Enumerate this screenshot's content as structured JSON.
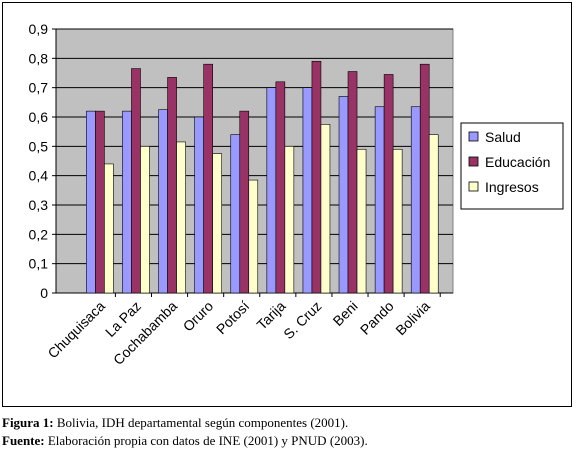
{
  "chart_data": {
    "type": "bar",
    "categories": [
      "Chuquisaca",
      "La Paz",
      "Cochabamba",
      "Oruro",
      "Potosí",
      "Tarija",
      "S. Cruz",
      "Beni",
      "Pando",
      "Bolivia"
    ],
    "series": [
      {
        "name": "Salud",
        "color": "#9999ff",
        "values": [
          0.62,
          0.62,
          0.625,
          0.6,
          0.54,
          0.7,
          0.7,
          0.67,
          0.635,
          0.635
        ]
      },
      {
        "name": "Educación",
        "color": "#993366",
        "values": [
          0.62,
          0.765,
          0.735,
          0.78,
          0.62,
          0.72,
          0.79,
          0.755,
          0.745,
          0.78
        ]
      },
      {
        "name": "Ingresos",
        "color": "#ffffcc",
        "values": [
          0.44,
          0.5,
          0.515,
          0.475,
          0.385,
          0.5,
          0.575,
          0.49,
          0.49,
          0.54
        ]
      }
    ],
    "yticks": [
      "0",
      "0,1",
      "0,2",
      "0,3",
      "0,4",
      "0,5",
      "0,6",
      "0,7",
      "0,8",
      "0,9"
    ],
    "ylim": [
      0,
      0.9
    ],
    "grid": true,
    "plot_background": "#c0c0c0",
    "legend_position": "right"
  },
  "caption": {
    "figure_label": "Figura 1:",
    "figure_text": " Bolivia, IDH departamental según componentes (2001).",
    "source_label": "Fuente:",
    "source_text": " Elaboración propia con datos de INE (2001) y PNUD (2003)."
  }
}
